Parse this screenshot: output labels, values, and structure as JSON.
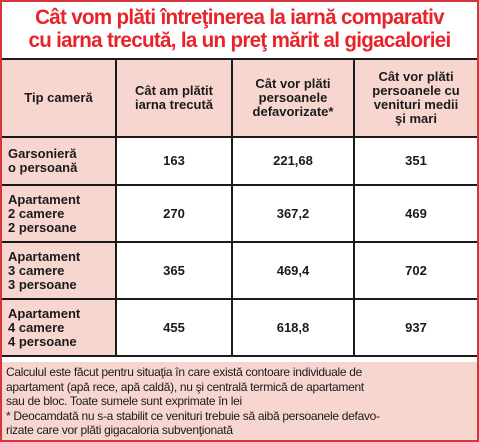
{
  "title": {
    "line1": "Cât vom plăti întreţinerea la iarnă comparativ",
    "line2": "cu iarna trecută, la un preţ mărit al gigacaloriei"
  },
  "table": {
    "headers": [
      [
        "Tip cameră"
      ],
      [
        "Cât am plătit",
        "iarna trecută"
      ],
      [
        "Cât vor plăti",
        "persoanele",
        "defavorizate*"
      ],
      [
        "Cât vor plăti",
        "persoanele cu",
        "venituri medii",
        "şi mari"
      ]
    ],
    "rows": [
      {
        "type": [
          "Garsonieră",
          "o persoană"
        ],
        "last_winter": "163",
        "disadvantaged": "221,68",
        "medium_high": "351"
      },
      {
        "type": [
          "Apartament",
          "2 camere",
          "2 persoane"
        ],
        "last_winter": "270",
        "disadvantaged": "367,2",
        "medium_high": "469"
      },
      {
        "type": [
          "Apartament",
          "3 camere",
          "3 persoane"
        ],
        "last_winter": "365",
        "disadvantaged": "469,4",
        "medium_high": "702"
      },
      {
        "type": [
          "Apartament",
          "4 camere",
          "4 persoane"
        ],
        "last_winter": "455",
        "disadvantaged": "618,8",
        "medium_high": "937"
      }
    ]
  },
  "notes": {
    "line1": "Calculul este făcut pentru situaţia în care există contoare individuale de",
    "line2": "apartament (apă rece, apă caldă), nu şi centrală termică de apartament",
    "line3": "sau de bloc. Toate sumele sunt exprimate în lei",
    "line4": "* Deocamdată nu s-a stabilit ce venituri trebuie să aibă persoanele defavo-",
    "line5": "rizate care vor plăti gigacaloria subvenţionată"
  },
  "colors": {
    "title_red": "#e8232a",
    "border_red": "#d6353a",
    "cell_pink": "#f7d6cf",
    "text_dark": "#1b1b1b"
  }
}
